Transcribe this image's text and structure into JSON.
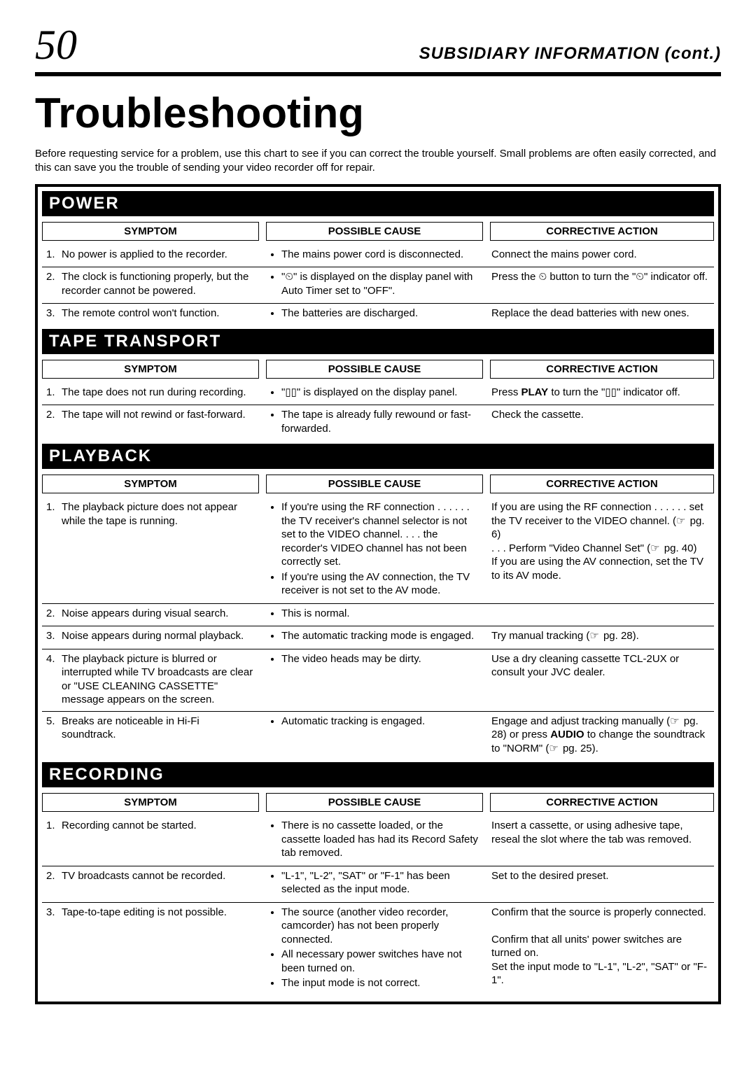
{
  "header": {
    "page_number": "50",
    "subtitle": "SUBSIDIARY INFORMATION (cont.)"
  },
  "title": "Troubleshooting",
  "intro": "Before requesting service for a problem, use this chart to see if you can correct the trouble yourself. Small problems are often easily corrected, and this can save you the trouble of sending your video recorder off for repair.",
  "column_headers": {
    "symptom": "SYMPTOM",
    "cause": "POSSIBLE CAUSE",
    "action": "CORRECTIVE ACTION"
  },
  "sections": [
    {
      "name": "POWER",
      "rows": [
        {
          "num": "1.",
          "symptom": "No power is applied to the recorder.",
          "causes": [
            "The mains power cord is disconnected."
          ],
          "action_html": "Connect the mains power cord."
        },
        {
          "num": "2.",
          "symptom": "The clock is functioning properly, but the recorder cannot be powered.",
          "causes": [
            "\"⏲\" is displayed on the display panel with Auto Timer set to \"OFF\"."
          ],
          "action_html": "Press the ⏲ button to turn the \"⏲\" indicator off."
        },
        {
          "num": "3.",
          "symptom": "The remote control won't function.",
          "causes": [
            "The batteries are discharged."
          ],
          "action_html": "Replace the dead batteries with new ones."
        }
      ]
    },
    {
      "name": "TAPE TRANSPORT",
      "rows": [
        {
          "num": "1.",
          "symptom": "The tape does not run during recording.",
          "causes": [
            "\"▯▯\" is displayed on the display panel."
          ],
          "action_html": "Press <span class=\"b\">PLAY</span> to turn the \"▯▯\" indicator off."
        },
        {
          "num": "2.",
          "symptom": "The tape will not rewind or fast-forward.",
          "causes": [
            "The tape is already fully rewound or fast-forwarded."
          ],
          "action_html": "Check the cassette."
        }
      ]
    },
    {
      "name": "PLAYBACK",
      "rows": [
        {
          "num": "1.",
          "symptom": "The playback picture does not appear while the tape is running.",
          "causes": [
            "If you're using the RF connection . . . . . . the TV receiver's channel selector is not set to the VIDEO channel. . . . the recorder's VIDEO channel has not been correctly set.",
            "If you're using the AV connection, the TV receiver is not set to the AV mode."
          ],
          "action_html": "If you are using the RF connection . . . . . . set the TV receiver to the VIDEO channel. (<span class=\"ptr\"></span> pg. 6)<br>. . . Perform \"Video Channel Set\" (<span class=\"ptr\"></span> pg. 40)<br>If you are using the AV connection, set the TV to its AV mode."
        },
        {
          "num": "2.",
          "symptom": "Noise appears during visual search.",
          "causes": [
            "This is normal."
          ],
          "action_html": ""
        },
        {
          "num": "3.",
          "symptom": "Noise appears during normal playback.",
          "causes": [
            "The automatic tracking mode is engaged."
          ],
          "action_html": "Try manual tracking (<span class=\"ptr\"></span> pg. 28)."
        },
        {
          "num": "4.",
          "symptom": "The playback picture is blurred or interrupted while TV broadcasts are clear or \"USE CLEANING CASSETTE\" message appears on the screen.",
          "causes": [
            "The video heads may be dirty."
          ],
          "action_html": "Use a dry cleaning cassette TCL-2UX or consult your JVC dealer."
        },
        {
          "num": "5.",
          "symptom": "Breaks are noticeable in Hi-Fi soundtrack.",
          "causes": [
            "Automatic tracking is engaged."
          ],
          "action_html": "Engage and adjust tracking manually (<span class=\"ptr\"></span> pg. 28) or press <span class=\"b\">AUDIO</span> to change the soundtrack to \"NORM\" (<span class=\"ptr\"></span> pg. 25)."
        }
      ]
    },
    {
      "name": "RECORDING",
      "rows": [
        {
          "num": "1.",
          "symptom": "Recording cannot be started.",
          "causes": [
            "There is no cassette loaded, or the cassette loaded has had its Record Safety tab removed."
          ],
          "action_html": "Insert a cassette, or using adhesive tape, reseal the slot where the tab was removed."
        },
        {
          "num": "2.",
          "symptom": "TV broadcasts cannot be recorded.",
          "causes": [
            "\"L-1\", \"L-2\", \"SAT\" or \"F-1\" has been selected as the input mode."
          ],
          "action_html": "Set to the desired preset."
        },
        {
          "num": "3.",
          "symptom": "Tape-to-tape editing is not possible.",
          "causes": [
            "The source (another video recorder, camcorder) has not been properly connected.",
            "All necessary power switches have not been turned on.",
            "The input mode is not correct."
          ],
          "action_html": "Confirm that the source is properly connected.<br><br>Confirm that all units' power switches are turned on.<br>Set the input mode to \"L-1\", \"L-2\", \"SAT\" or \"F-1\"."
        }
      ]
    }
  ]
}
